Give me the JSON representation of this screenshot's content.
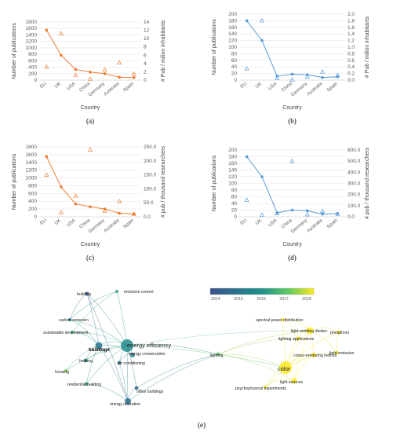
{
  "chart_data": [
    {
      "id": "a",
      "type": "line",
      "panel_label": "(a)",
      "color": "#ED7D31",
      "categories": [
        "EU",
        "UK",
        "USA",
        "China",
        "Germany",
        "Australia",
        "Spain"
      ],
      "xlabel": "Country",
      "ylabel": "Number of publications",
      "y2label": "# Pub / milion inhabitants",
      "ylim": [
        0,
        1800
      ],
      "yticks": [
        "0",
        "200",
        "400",
        "600",
        "800",
        "1000",
        "1200",
        "1400",
        "1600",
        "1800"
      ],
      "y2lim": [
        0,
        14
      ],
      "y2ticks": [
        "0",
        "2",
        "4",
        "6",
        "8",
        "10",
        "12",
        "14"
      ],
      "series": [
        {
          "values": [
            1550,
            770,
            330,
            250,
            200,
            90,
            80
          ]
        },
        {
          "axis": "secondary",
          "marker": "triangle",
          "values": [
            3.2,
            11.2,
            1.2,
            0.3,
            2.5,
            4.2,
            1.5
          ]
        }
      ]
    },
    {
      "id": "b",
      "type": "line",
      "panel_label": "(b)",
      "color": "#5B9BD5",
      "categories": [
        "EU",
        "UK",
        "USA",
        "China",
        "Germany",
        "Australia",
        "Spain"
      ],
      "xlabel": "Country",
      "ylabel": "Number of publications",
      "y2label": "# Pub / milion inhabitants",
      "ylim": [
        0,
        200
      ],
      "yticks": [
        "0",
        "20",
        "40",
        "60",
        "80",
        "100",
        "120",
        "140",
        "160",
        "180",
        "200"
      ],
      "y2lim": [
        0,
        2.0
      ],
      "y2ticks": [
        "0.0",
        "0.2",
        "0.4",
        "0.6",
        "0.8",
        "1.0",
        "1.2",
        "1.4",
        "1.6",
        "1.8",
        "2.0"
      ],
      "series": [
        {
          "values": [
            180,
            120,
            12,
            18,
            16,
            8,
            10
          ]
        },
        {
          "axis": "secondary",
          "marker": "triangle",
          "values": [
            0.35,
            1.8,
            0.05,
            0.01,
            0.1,
            0.25,
            0.15
          ]
        }
      ]
    },
    {
      "id": "c",
      "type": "line",
      "panel_label": "(c)",
      "color": "#ED7D31",
      "categories": [
        "EU",
        "UK",
        "USA",
        "China",
        "Germany",
        "Australia",
        "Spain"
      ],
      "xlabel": "Country",
      "ylabel": "Number of publications",
      "y2label": "# pub / thousand researchers",
      "ylim": [
        0,
        1800
      ],
      "yticks": [
        "0",
        "200",
        "400",
        "600",
        "800",
        "1000",
        "1200",
        "1400",
        "1600",
        "1800"
      ],
      "y2lim": [
        0,
        250
      ],
      "y2ticks": [
        "0.0",
        "50.0",
        "100.0",
        "150.0",
        "200.0",
        "250.0"
      ],
      "series": [
        {
          "values": [
            1550,
            770,
            330,
            260,
            200,
            90,
            70
          ]
        },
        {
          "axis": "secondary",
          "marker": "triangle",
          "values": [
            150,
            15,
            75,
            240,
            20,
            55,
            10
          ]
        }
      ]
    },
    {
      "id": "d",
      "type": "line",
      "panel_label": "(d)",
      "color": "#5B9BD5",
      "categories": [
        "EU",
        "UK",
        "USA",
        "China",
        "Germany",
        "Australia",
        "Spain"
      ],
      "xlabel": "Country",
      "ylabel": "Number of publications",
      "y2label": "# pub / thousand researchers",
      "ylim": [
        0,
        200
      ],
      "yticks": [
        "0",
        "20",
        "40",
        "60",
        "80",
        "100",
        "120",
        "140",
        "160",
        "180",
        "200"
      ],
      "y2lim": [
        0,
        600
      ],
      "y2ticks": [
        "0.0",
        "100.0",
        "200.0",
        "300.0",
        "400.0",
        "500.0",
        "600.0"
      ],
      "series": [
        {
          "values": [
            180,
            120,
            12,
            20,
            18,
            8,
            10
          ]
        },
        {
          "axis": "secondary",
          "marker": "triangle",
          "values": [
            150,
            15,
            30,
            500,
            20,
            50,
            25
          ]
        }
      ]
    }
  ],
  "network": {
    "panel_label": "(e)",
    "colorbar": {
      "ticks": [
        "2014",
        "2015",
        "2016",
        "2017",
        "2018"
      ],
      "colors": [
        "#3b528b",
        "#2c728e",
        "#21918c",
        "#5ec962",
        "#fde725"
      ]
    },
    "nodes": [
      {
        "label": "building",
        "year": 2014.2,
        "size": 2.5
      },
      {
        "label": "emission control",
        "year": 2016.2,
        "size": 2
      },
      {
        "label": "carbon emission",
        "year": 2015.6,
        "size": 2
      },
      {
        "label": "sustainable development",
        "year": 2016.8,
        "size": 2.2
      },
      {
        "label": "buildings",
        "year": 2015.2,
        "size": 4.5
      },
      {
        "label": "energy efficiency",
        "year": 2015.8,
        "size": 8
      },
      {
        "label": "energy conservation",
        "year": 2015.4,
        "size": 3
      },
      {
        "label": "heating",
        "year": 2015.6,
        "size": 2.4
      },
      {
        "label": "air conditioning",
        "year": 2015.2,
        "size": 2.4
      },
      {
        "label": "housing",
        "year": 2017.2,
        "size": 2
      },
      {
        "label": "residential building",
        "year": 2016.4,
        "size": 2.2
      },
      {
        "label": "office buildings",
        "year": 2014.6,
        "size": 2.4
      },
      {
        "label": "energy utilization",
        "year": 2014.8,
        "size": 4
      },
      {
        "label": "lighting",
        "year": 2016.8,
        "size": 2.2
      },
      {
        "label": "spectral power distribution",
        "year": 2018,
        "size": 2
      },
      {
        "label": "light emitting diodes",
        "year": 2018,
        "size": 4.5
      },
      {
        "label": "lighting applications",
        "year": 2018,
        "size": 2.5
      },
      {
        "label": "phosphors",
        "year": 2017.9,
        "size": 2.5
      },
      {
        "label": "colour-rendering indices",
        "year": 2018,
        "size": 3
      },
      {
        "label": "light emission",
        "year": 2017.9,
        "size": 2.5
      },
      {
        "label": "color",
        "year": 2018,
        "size": 8
      },
      {
        "label": "light sources",
        "year": 2018,
        "size": 3.5
      },
      {
        "label": "psychophysical experiments",
        "year": 2017.8,
        "size": 2.2
      }
    ]
  }
}
